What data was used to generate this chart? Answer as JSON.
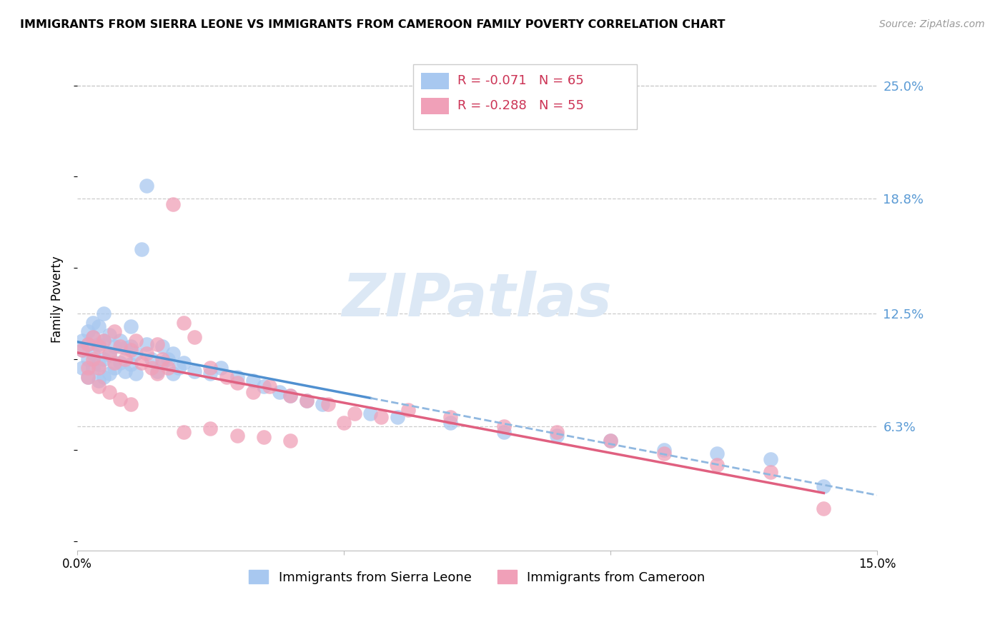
{
  "title": "IMMIGRANTS FROM SIERRA LEONE VS IMMIGRANTS FROM CAMEROON FAMILY POVERTY CORRELATION CHART",
  "source": "Source: ZipAtlas.com",
  "ylabel": "Family Poverty",
  "ytick_labels": [
    "25.0%",
    "18.8%",
    "12.5%",
    "6.3%"
  ],
  "ytick_values": [
    0.25,
    0.188,
    0.125,
    0.063
  ],
  "xlim": [
    0.0,
    0.15
  ],
  "ylim": [
    -0.005,
    0.27
  ],
  "legend1_R": "-0.071",
  "legend1_N": "65",
  "legend2_R": "-0.288",
  "legend2_N": "55",
  "color_sierra": "#a8c8f0",
  "color_cameroon": "#f0a0b8",
  "color_line_sierra": "#5090d0",
  "color_line_cameroon": "#e06080",
  "color_dashed": "#90b8e0",
  "watermark_text": "ZIPatlas",
  "watermark_color": "#dce8f5",
  "sierra_leone_x": [
    0.001,
    0.001,
    0.001,
    0.002,
    0.002,
    0.002,
    0.002,
    0.003,
    0.003,
    0.003,
    0.003,
    0.004,
    0.004,
    0.004,
    0.004,
    0.005,
    0.005,
    0.005,
    0.005,
    0.006,
    0.006,
    0.006,
    0.007,
    0.007,
    0.008,
    0.008,
    0.009,
    0.009,
    0.01,
    0.01,
    0.01,
    0.011,
    0.011,
    0.012,
    0.013,
    0.013,
    0.014,
    0.015,
    0.016,
    0.016,
    0.017,
    0.018,
    0.018,
    0.019,
    0.02,
    0.022,
    0.025,
    0.027,
    0.03,
    0.033,
    0.035,
    0.038,
    0.04,
    0.043,
    0.046,
    0.055,
    0.06,
    0.07,
    0.08,
    0.09,
    0.1,
    0.11,
    0.12,
    0.13,
    0.14
  ],
  "sierra_leone_y": [
    0.095,
    0.105,
    0.11,
    0.09,
    0.1,
    0.108,
    0.115,
    0.095,
    0.103,
    0.112,
    0.12,
    0.088,
    0.097,
    0.108,
    0.118,
    0.09,
    0.1,
    0.11,
    0.125,
    0.092,
    0.102,
    0.113,
    0.095,
    0.107,
    0.098,
    0.11,
    0.093,
    0.106,
    0.097,
    0.107,
    0.118,
    0.092,
    0.103,
    0.16,
    0.195,
    0.108,
    0.1,
    0.093,
    0.107,
    0.098,
    0.1,
    0.092,
    0.103,
    0.095,
    0.098,
    0.093,
    0.092,
    0.095,
    0.09,
    0.088,
    0.085,
    0.082,
    0.08,
    0.077,
    0.075,
    0.07,
    0.068,
    0.065,
    0.06,
    0.058,
    0.055,
    0.05,
    0.048,
    0.045,
    0.03
  ],
  "cameroon_x": [
    0.001,
    0.002,
    0.002,
    0.003,
    0.003,
    0.004,
    0.004,
    0.005,
    0.006,
    0.007,
    0.007,
    0.008,
    0.009,
    0.01,
    0.011,
    0.012,
    0.013,
    0.014,
    0.015,
    0.016,
    0.017,
    0.018,
    0.02,
    0.022,
    0.025,
    0.028,
    0.03,
    0.033,
    0.036,
    0.04,
    0.043,
    0.047,
    0.052,
    0.057,
    0.062,
    0.07,
    0.08,
    0.09,
    0.1,
    0.11,
    0.12,
    0.13,
    0.002,
    0.004,
    0.006,
    0.008,
    0.01,
    0.015,
    0.02,
    0.025,
    0.03,
    0.035,
    0.04,
    0.05,
    0.14
  ],
  "cameroon_y": [
    0.105,
    0.095,
    0.108,
    0.1,
    0.112,
    0.095,
    0.107,
    0.11,
    0.103,
    0.098,
    0.115,
    0.107,
    0.1,
    0.105,
    0.11,
    0.098,
    0.103,
    0.095,
    0.108,
    0.1,
    0.095,
    0.185,
    0.12,
    0.112,
    0.095,
    0.09,
    0.087,
    0.082,
    0.085,
    0.08,
    0.077,
    0.075,
    0.07,
    0.068,
    0.072,
    0.068,
    0.063,
    0.06,
    0.055,
    0.048,
    0.042,
    0.038,
    0.09,
    0.085,
    0.082,
    0.078,
    0.075,
    0.092,
    0.06,
    0.062,
    0.058,
    0.057,
    0.055,
    0.065,
    0.018
  ]
}
